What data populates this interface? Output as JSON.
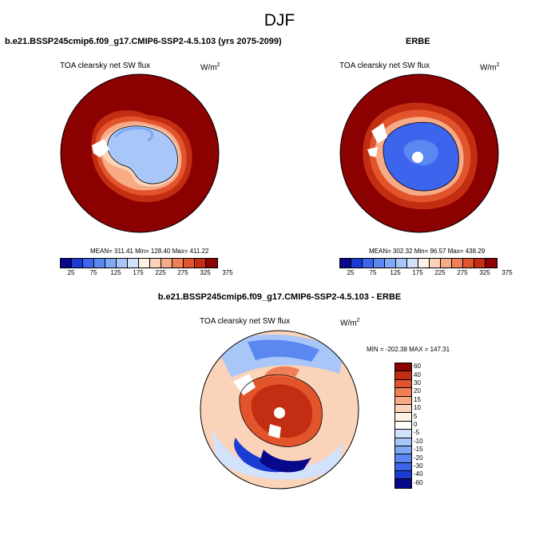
{
  "season": "DJF",
  "model_panel": {
    "title": "b.e21.BSSP245cmip6.f09_g17.CMIP6-SSP2-4.5.103 (yrs 2075-2099)",
    "map_label": "TOA clearsky net SW flux",
    "units": "W/m",
    "units_exp": "2",
    "stats": "MEAN= 311.41  Min= 128.40  Max= 411.22"
  },
  "obs_panel": {
    "title": "ERBE",
    "map_label": "TOA clearsky net SW flux",
    "units": "W/m",
    "units_exp": "2",
    "stats": "MEAN= 302.32  Min=  96.57  Max= 438.29"
  },
  "diff_panel": {
    "title": "b.e21.BSSP245cmip6.f09_g17.CMIP6-SSP2-4.5.103 - ERBE",
    "map_label": "TOA clearsky net SW flux",
    "units": "W/m",
    "units_exp": "2",
    "stats": "MIN = -202.38 MAX = 147.31"
  },
  "abs_colorbar": {
    "colors": [
      "#08088a",
      "#1a3cd4",
      "#3c64ec",
      "#5a87f0",
      "#7fa8f5",
      "#a9c6f8",
      "#d3e2fb",
      "#fff1e3",
      "#fbd3b8",
      "#f6aa86",
      "#f07f57",
      "#e2542c",
      "#c32d12",
      "#8b0000"
    ],
    "tick_labels": [
      "25",
      "75",
      "125",
      "175",
      "225",
      "275",
      "325",
      "375"
    ]
  },
  "diff_colorbar": {
    "colors": [
      "#8b0000",
      "#c32d12",
      "#e2542c",
      "#f07f57",
      "#f6aa86",
      "#fbd3b8",
      "#fff1e3",
      "#ffffff",
      "#d3e2fb",
      "#a9c6f8",
      "#7fa8f5",
      "#5a87f0",
      "#3c64ec",
      "#1a3cd4",
      "#08088a"
    ],
    "tick_labels": [
      "60",
      "40",
      "30",
      "20",
      "15",
      "10",
      "5",
      "0",
      "-5",
      "-10",
      "-15",
      "-20",
      "-30",
      "-40",
      "-60"
    ]
  }
}
